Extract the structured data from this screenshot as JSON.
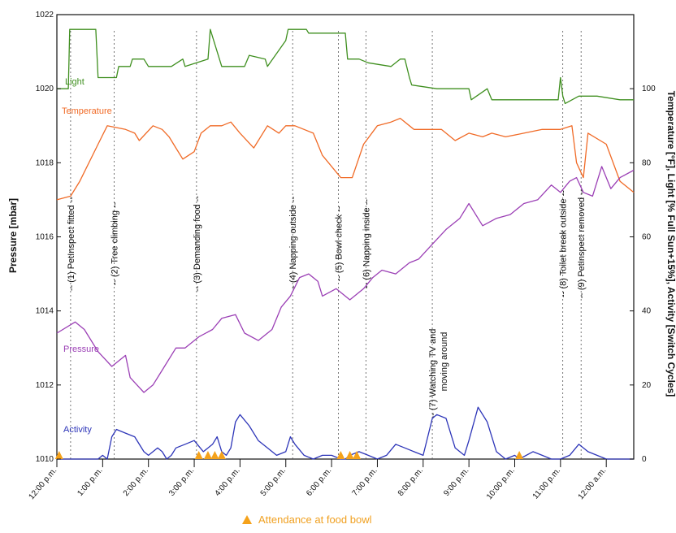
{
  "chart_data": {
    "type": "line",
    "title": "",
    "ylabel_left": "Pressure [mbar]",
    "ylabel_right": "Temperature [°F],  Light [% Full Sun+15%],  Activity [Switch Cycles]",
    "ylim_left": [
      1010,
      1022
    ],
    "ylim_right": [
      0,
      120
    ],
    "yticks_left": [
      "1010",
      "1012",
      "1014",
      "1016",
      "1018",
      "1020",
      "1022"
    ],
    "yticks_right": [
      "0",
      "20",
      "40",
      "60",
      "80",
      "100"
    ],
    "x_range_hours": [
      12,
      24.6
    ],
    "xticks": [
      {
        "t": 12,
        "label": "12:00 p.m."
      },
      {
        "t": 13,
        "label": "1:00 p.m."
      },
      {
        "t": 14,
        "label": "2:00 p.m."
      },
      {
        "t": 15,
        "label": "3:00 p.m."
      },
      {
        "t": 16,
        "label": "4:00 p.m."
      },
      {
        "t": 17,
        "label": "5:00 p.m."
      },
      {
        "t": 18,
        "label": "6:00 p.m."
      },
      {
        "t": 19,
        "label": "7:00 p.m."
      },
      {
        "t": 20,
        "label": "8:00 p.m."
      },
      {
        "t": 21,
        "label": "9:00 p.m."
      },
      {
        "t": 22,
        "label": "10:00 p.m."
      },
      {
        "t": 23,
        "label": "11:00 p.m."
      },
      {
        "t": 24,
        "label": "12:00 a.m."
      }
    ],
    "series": [
      {
        "name": "Light",
        "axis": "right",
        "color": "#3f8f1f",
        "x": [
          12,
          12.25,
          12.28,
          12.85,
          12.9,
          13.3,
          13.35,
          13.6,
          13.65,
          13.9,
          14.0,
          14.5,
          14.75,
          14.8,
          15.3,
          15.35,
          15.6,
          15.8,
          16.1,
          16.2,
          16.55,
          16.6,
          17.0,
          17.05,
          17.45,
          17.5,
          18.3,
          18.35,
          18.6,
          18.8,
          19.3,
          19.5,
          19.6,
          19.7,
          19.75,
          20.3,
          20.6,
          21.0,
          21.05,
          21.4,
          21.5,
          22.2,
          22.8,
          22.95,
          23.0,
          23.05,
          23.1,
          23.4,
          23.8,
          24.3,
          24.6
        ],
        "y": [
          100,
          100,
          116,
          116,
          103,
          103,
          106,
          106,
          108,
          108,
          106,
          106,
          108,
          106,
          108,
          116,
          106,
          106,
          106,
          109,
          108,
          106,
          113,
          116,
          116,
          115,
          115,
          108,
          108,
          107,
          106,
          108,
          108,
          103,
          101,
          100,
          100,
          100,
          97,
          100,
          97,
          97,
          97,
          97,
          103,
          98,
          96,
          98,
          98,
          97,
          97
        ]
      },
      {
        "name": "Temperature",
        "axis": "right",
        "color": "#f06a26",
        "x": [
          12,
          12.3,
          12.5,
          12.9,
          13.1,
          13.5,
          13.7,
          13.8,
          14.1,
          14.3,
          14.45,
          14.6,
          14.75,
          15.0,
          15.15,
          15.35,
          15.6,
          15.8,
          16.0,
          16.3,
          16.6,
          16.85,
          17.0,
          17.2,
          17.6,
          17.8,
          18.2,
          18.45,
          18.7,
          19.0,
          19.3,
          19.5,
          19.8,
          20.1,
          20.4,
          20.7,
          21.0,
          21.3,
          21.5,
          21.8,
          22.2,
          22.6,
          23.0,
          23.25,
          23.35,
          23.5,
          23.6,
          24.0,
          24.3,
          24.6
        ],
        "y": [
          70,
          71,
          75,
          85,
          90,
          89,
          88,
          86,
          90,
          89,
          87,
          84,
          81,
          83,
          88,
          90,
          90,
          91,
          88,
          84,
          90,
          88,
          90,
          90,
          88,
          82,
          76,
          76,
          85,
          90,
          91,
          92,
          89,
          89,
          89,
          86,
          88,
          87,
          88,
          87,
          88,
          89,
          89,
          90,
          80,
          76,
          88,
          85,
          75,
          72
        ]
      },
      {
        "name": "Pressure",
        "axis": "left",
        "color": "#9b3fb5",
        "x": [
          12,
          12.4,
          12.6,
          12.9,
          13.2,
          13.5,
          13.6,
          13.75,
          13.9,
          14.1,
          14.3,
          14.6,
          14.8,
          15.1,
          15.4,
          15.6,
          15.9,
          16.1,
          16.4,
          16.7,
          16.9,
          17.1,
          17.3,
          17.5,
          17.7,
          17.8,
          18.1,
          18.4,
          18.7,
          18.9,
          19.1,
          19.4,
          19.7,
          19.9,
          20.2,
          20.5,
          20.8,
          21.0,
          21.3,
          21.6,
          21.9,
          22.2,
          22.5,
          22.8,
          23.0,
          23.2,
          23.35,
          23.5,
          23.7,
          23.9,
          24.1,
          24.3,
          24.6
        ],
        "y": [
          1013.4,
          1013.7,
          1013.5,
          1012.9,
          1012.5,
          1012.8,
          1012.2,
          1012.0,
          1011.8,
          1012.0,
          1012.4,
          1013.0,
          1013.0,
          1013.3,
          1013.5,
          1013.8,
          1013.9,
          1013.4,
          1013.2,
          1013.5,
          1014.1,
          1014.4,
          1014.9,
          1015.0,
          1014.8,
          1014.4,
          1014.6,
          1014.3,
          1014.6,
          1014.9,
          1015.1,
          1015.0,
          1015.3,
          1015.4,
          1015.8,
          1016.2,
          1016.5,
          1016.9,
          1016.3,
          1016.5,
          1016.6,
          1016.9,
          1017.0,
          1017.4,
          1017.2,
          1017.5,
          1017.6,
          1017.2,
          1017.1,
          1017.9,
          1017.3,
          1017.6,
          1017.8
        ]
      },
      {
        "name": "Activity",
        "axis": "right",
        "color": "#2d35b8",
        "x": [
          12,
          12.9,
          13.0,
          13.1,
          13.2,
          13.3,
          13.5,
          13.7,
          13.9,
          14.0,
          14.2,
          14.3,
          14.4,
          14.5,
          14.6,
          14.8,
          15.0,
          15.2,
          15.4,
          15.5,
          15.6,
          15.7,
          15.8,
          15.9,
          16.0,
          16.2,
          16.4,
          16.6,
          16.8,
          17.0,
          17.1,
          17.2,
          17.4,
          17.6,
          17.8,
          18.0,
          18.2,
          18.3,
          18.4,
          18.6,
          18.8,
          19.0,
          19.2,
          19.4,
          19.6,
          19.8,
          20.0,
          20.2,
          20.3,
          20.5,
          20.7,
          20.9,
          21.0,
          21.2,
          21.4,
          21.6,
          21.8,
          22.0,
          22.1,
          22.4,
          22.6,
          22.8,
          23.0,
          23.2,
          23.4,
          23.6,
          24.0,
          24.6
        ],
        "y": [
          0,
          0,
          1,
          0,
          6,
          8,
          7,
          6,
          2,
          1,
          3,
          2,
          0,
          1,
          3,
          4,
          5,
          2,
          4,
          6,
          2,
          1,
          3,
          10,
          12,
          9,
          5,
          3,
          1,
          2,
          6,
          4,
          1,
          0,
          1,
          1,
          0,
          0,
          1,
          2,
          1,
          0,
          1,
          4,
          3,
          2,
          1,
          11,
          12,
          11,
          3,
          1,
          5,
          14,
          10,
          2,
          0,
          1,
          0,
          2,
          1,
          0,
          0,
          1,
          4,
          2,
          0,
          0
        ]
      }
    ],
    "series_labels": [
      {
        "text": "Light",
        "color": "#3f8f1f"
      },
      {
        "text": "Temperature",
        "color": "#f06a26"
      },
      {
        "text": "Pressure",
        "color": "#9b3fb5"
      },
      {
        "text": "Activity",
        "color": "#2d35b8"
      }
    ],
    "events": [
      {
        "t": 12.3,
        "text": "-- (1) PetInspect fitted --"
      },
      {
        "t": 13.25,
        "text": "-- (2) Tree climbing --"
      },
      {
        "t": 15.05,
        "text": "-- (3) Demanding food --"
      },
      {
        "t": 17.15,
        "text": "-- (4) Napping outside --"
      },
      {
        "t": 18.15,
        "text": "-- (5) Bowl check --"
      },
      {
        "t": 18.75,
        "text": "-- (6) Napping inside --"
      },
      {
        "t": 20.2,
        "text": "-- (7) Watching TV and",
        "text2": "moving around"
      },
      {
        "t": 23.05,
        "text": "-- (8) Toilet break outside --"
      },
      {
        "t": 23.45,
        "text": "-- (9) PetInspect removed --"
      }
    ],
    "food_bowl_times": [
      12.05,
      15.1,
      15.3,
      15.45,
      15.6,
      18.2,
      18.4,
      18.55,
      22.1
    ],
    "legend_text": "Attendance at food bowl",
    "legend_color": "#f5a21b"
  }
}
